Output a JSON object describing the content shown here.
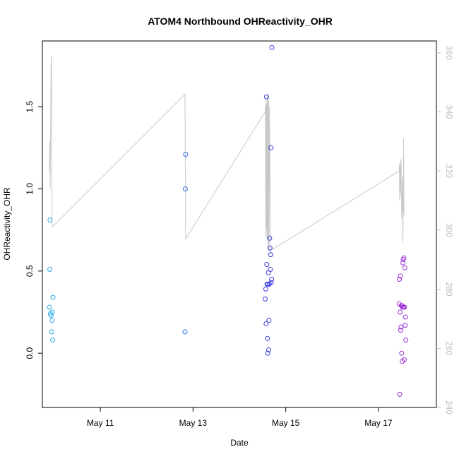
{
  "chart_data": {
    "type": "scatter",
    "title": "ATOM4 Northbound OHReactivity_OHR",
    "xlabel": "Date",
    "ylabel": "OHReactivity_OHR",
    "x_range": [
      "2016-05-09 18:00",
      "2016-05-18 06:00"
    ],
    "x_ticks": [
      {
        "label": "May 11",
        "date": "2016-05-11 00:00"
      },
      {
        "label": "May 13",
        "date": "2016-05-13 00:00"
      },
      {
        "label": "May 15",
        "date": "2016-05-15 00:00"
      },
      {
        "label": "May 17",
        "date": "2016-05-17 00:00"
      }
    ],
    "y_left": {
      "range": [
        -0.33,
        1.9
      ],
      "ticks": [
        0.0,
        0.5,
        1.0,
        1.5
      ],
      "tick_labels": [
        "0.0",
        "0.5",
        "1.0",
        "1.5"
      ]
    },
    "y_right": {
      "range": [
        240,
        364
      ],
      "ticks": [
        240,
        260,
        280,
        300,
        320,
        340,
        360
      ],
      "tick_labels": [
        "240",
        "260",
        "280",
        "300",
        "320",
        "340",
        "360"
      ]
    },
    "grid": false,
    "point_colors": {
      "early": "#29b6e6",
      "mid": "#3b5bdb",
      "late": "#9b30d9"
    },
    "line_color": "#c8c8c8",
    "points": [
      {
        "x": "2016-05-09 21:40",
        "y": 0.28,
        "c": "#2aa8e8"
      },
      {
        "x": "2016-05-09 21:50",
        "y": 0.51,
        "c": "#2aa8e8"
      },
      {
        "x": "2016-05-09 22:00",
        "y": 0.81,
        "c": "#2aa8e8"
      },
      {
        "x": "2016-05-09 22:10",
        "y": 0.24,
        "c": "#2aa8e8"
      },
      {
        "x": "2016-05-09 22:30",
        "y": 0.23,
        "c": "#2aa8e8"
      },
      {
        "x": "2016-05-09 22:50",
        "y": 0.13,
        "c": "#2aa8e8"
      },
      {
        "x": "2016-05-09 23:00",
        "y": 0.2,
        "c": "#2aa8e8"
      },
      {
        "x": "2016-05-09 23:10",
        "y": 0.25,
        "c": "#2aa8e8"
      },
      {
        "x": "2016-05-09 23:20",
        "y": 0.08,
        "c": "#2aa8e8"
      },
      {
        "x": "2016-05-09 23:30",
        "y": 0.34,
        "c": "#2aa8e8"
      },
      {
        "x": "2016-05-12 19:50",
        "y": 0.13,
        "c": "#2f6fe4"
      },
      {
        "x": "2016-05-12 20:00",
        "y": 1.0,
        "c": "#2f6fe4"
      },
      {
        "x": "2016-05-12 20:10",
        "y": 1.21,
        "c": "#2f6fe4"
      },
      {
        "x": "2016-05-14 13:20",
        "y": 0.33,
        "c": "#3a3ae0"
      },
      {
        "x": "2016-05-14 13:40",
        "y": 0.39,
        "c": "#3a3ae0"
      },
      {
        "x": "2016-05-14 13:50",
        "y": 0.18,
        "c": "#3a3ae0"
      },
      {
        "x": "2016-05-14 14:00",
        "y": 1.56,
        "c": "#3a3ae0"
      },
      {
        "x": "2016-05-14 14:10",
        "y": 0.54,
        "c": "#3a3ae0"
      },
      {
        "x": "2016-05-14 14:20",
        "y": 0.42,
        "c": "#3a3ae0"
      },
      {
        "x": "2016-05-14 14:30",
        "y": 0.09,
        "c": "#3a3ae0"
      },
      {
        "x": "2016-05-14 14:40",
        "y": 0.0,
        "c": "#3a3ae0"
      },
      {
        "x": "2016-05-14 14:50",
        "y": 0.42,
        "c": "#3a3ae0"
      },
      {
        "x": "2016-05-14 15:00",
        "y": 0.49,
        "c": "#3a3ae0"
      },
      {
        "x": "2016-05-14 15:10",
        "y": 0.02,
        "c": "#3a3ae0"
      },
      {
        "x": "2016-05-14 15:20",
        "y": 0.2,
        "c": "#3a3ae0"
      },
      {
        "x": "2016-05-14 15:30",
        "y": 0.42,
        "c": "#3a3ae0"
      },
      {
        "x": "2016-05-14 15:40",
        "y": 0.7,
        "c": "#3a3ae0"
      },
      {
        "x": "2016-05-14 15:50",
        "y": 0.64,
        "c": "#3a3ae0"
      },
      {
        "x": "2016-05-14 16:00",
        "y": 0.51,
        "c": "#3a3ae0"
      },
      {
        "x": "2016-05-14 16:10",
        "y": 0.6,
        "c": "#3a3ae0"
      },
      {
        "x": "2016-05-14 16:20",
        "y": 1.25,
        "c": "#3a3ae0"
      },
      {
        "x": "2016-05-14 16:30",
        "y": 0.43,
        "c": "#3a3ae0"
      },
      {
        "x": "2016-05-14 16:40",
        "y": 0.45,
        "c": "#3a3ae0"
      },
      {
        "x": "2016-05-14 16:50",
        "y": 1.86,
        "c": "#3a3ae0"
      },
      {
        "x": "2016-05-17 10:40",
        "y": 0.3,
        "c": "#9b30d9"
      },
      {
        "x": "2016-05-17 10:50",
        "y": 0.45,
        "c": "#9b30d9"
      },
      {
        "x": "2016-05-17 11:00",
        "y": -0.25,
        "c": "#9b30d9"
      },
      {
        "x": "2016-05-17 11:10",
        "y": 0.25,
        "c": "#9b30d9"
      },
      {
        "x": "2016-05-17 11:20",
        "y": 0.47,
        "c": "#9b30d9"
      },
      {
        "x": "2016-05-17 11:30",
        "y": 0.14,
        "c": "#9b30d9"
      },
      {
        "x": "2016-05-17 11:40",
        "y": 0.16,
        "c": "#9b30d9"
      },
      {
        "x": "2016-05-17 11:50",
        "y": 0.29,
        "c": "#9b30d9"
      },
      {
        "x": "2016-05-17 12:00",
        "y": 0.0,
        "c": "#9b30d9"
      },
      {
        "x": "2016-05-17 12:10",
        "y": 0.29,
        "c": "#9b30d9"
      },
      {
        "x": "2016-05-17 12:20",
        "y": -0.05,
        "c": "#9b30d9"
      },
      {
        "x": "2016-05-17 12:30",
        "y": 0.28,
        "c": "#9b30d9"
      },
      {
        "x": "2016-05-17 12:40",
        "y": 0.55,
        "c": "#9b30d9"
      },
      {
        "x": "2016-05-17 12:50",
        "y": 0.57,
        "c": "#9b30d9"
      },
      {
        "x": "2016-05-17 13:00",
        "y": 0.28,
        "c": "#9b30d9"
      },
      {
        "x": "2016-05-17 13:10",
        "y": 0.58,
        "c": "#9b30d9"
      },
      {
        "x": "2016-05-17 13:20",
        "y": -0.04,
        "c": "#9b30d9"
      },
      {
        "x": "2016-05-17 13:30",
        "y": 0.28,
        "c": "#9b30d9"
      },
      {
        "x": "2016-05-17 13:40",
        "y": 0.52,
        "c": "#9b30d9"
      },
      {
        "x": "2016-05-17 13:50",
        "y": 0.17,
        "c": "#9b30d9"
      },
      {
        "x": "2016-05-17 14:00",
        "y": 0.22,
        "c": "#9b30d9"
      },
      {
        "x": "2016-05-17 14:10",
        "y": 0.08,
        "c": "#9b30d9"
      }
    ],
    "line_right": [
      [
        "2016-05-09 21:40",
        320
      ],
      [
        "2016-05-09 21:50",
        330
      ],
      [
        "2016-05-09 22:00",
        314
      ],
      [
        "2016-05-09 22:10",
        325
      ],
      [
        "2016-05-09 22:30",
        355
      ],
      [
        "2016-05-09 22:45",
        359
      ],
      [
        "2016-05-09 23:00",
        301
      ],
      [
        "2016-05-12 19:50",
        346
      ],
      [
        "2016-05-12 20:10",
        297
      ],
      [
        "2016-05-14 13:20",
        340
      ],
      [
        "2016-05-14 13:30",
        342
      ],
      [
        "2016-05-14 13:40",
        298
      ],
      [
        "2016-05-14 13:50",
        344
      ],
      [
        "2016-05-14 14:00",
        300
      ],
      [
        "2016-05-14 14:10",
        343
      ],
      [
        "2016-05-14 14:20",
        297
      ],
      [
        "2016-05-14 14:30",
        346
      ],
      [
        "2016-05-14 14:40",
        296
      ],
      [
        "2016-05-14 14:50",
        345
      ],
      [
        "2016-05-14 15:00",
        294
      ],
      [
        "2016-05-14 15:10",
        344
      ],
      [
        "2016-05-14 15:20",
        293
      ],
      [
        "2016-05-14 15:40",
        342
      ],
      [
        "2016-05-14 16:00",
        293
      ],
      [
        "2016-05-17 10:40",
        320
      ],
      [
        "2016-05-17 10:50",
        322
      ],
      [
        "2016-05-17 11:00",
        310
      ],
      [
        "2016-05-17 11:10",
        323
      ],
      [
        "2016-05-17 11:20",
        312
      ],
      [
        "2016-05-17 11:40",
        324
      ],
      [
        "2016-05-17 12:00",
        304
      ],
      [
        "2016-05-17 12:20",
        318
      ],
      [
        "2016-05-17 12:40",
        296
      ],
      [
        "2016-05-17 13:00",
        331
      ],
      [
        "2016-05-17 13:10",
        306
      ],
      [
        "2016-05-17 13:20",
        305
      ]
    ]
  }
}
